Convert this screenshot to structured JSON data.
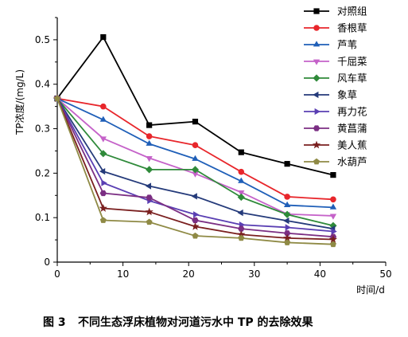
{
  "caption": {
    "number": "图 3",
    "text": "不同生态浮床植物对河道污水中 TP 的去除效果"
  },
  "chart_data": {
    "type": "line",
    "xlabel": "时间/d",
    "ylabel": "TP浓度/(mg/L)",
    "xlim": [
      0,
      50
    ],
    "ylim": [
      0,
      0.55
    ],
    "xticks": [
      "0",
      "10",
      "20",
      "30",
      "40",
      "50"
    ],
    "yticks": [
      "0",
      "0.1",
      "0.2",
      "0.3",
      "0.4",
      "0.5"
    ],
    "grid": false,
    "legend_position": "top-right",
    "x": [
      0,
      7,
      14,
      21,
      28,
      35,
      42
    ],
    "series": [
      {
        "name": "对照组",
        "color": "#000000",
        "marker": "square",
        "values": [
          0.368,
          0.506,
          0.308,
          0.316,
          0.247,
          0.221,
          0.196
        ]
      },
      {
        "name": "香根草",
        "color": "#e8262b",
        "marker": "circle",
        "values": [
          0.368,
          0.35,
          0.283,
          0.263,
          0.203,
          0.147,
          0.141
        ]
      },
      {
        "name": "芦苇",
        "color": "#1f5fb8",
        "marker": "triangle-up",
        "values": [
          0.368,
          0.32,
          0.266,
          0.232,
          0.182,
          0.128,
          0.123
        ]
      },
      {
        "name": "千屈菜",
        "color": "#c562c9",
        "marker": "triangle-down",
        "values": [
          0.368,
          0.278,
          0.234,
          0.199,
          0.157,
          0.108,
          0.104
        ]
      },
      {
        "name": "风车草",
        "color": "#2f8a3a",
        "marker": "diamond",
        "values": [
          0.368,
          0.244,
          0.208,
          0.208,
          0.146,
          0.107,
          0.082
        ]
      },
      {
        "name": "象草",
        "color": "#243a7a",
        "marker": "triangle-left",
        "values": [
          0.368,
          0.204,
          0.171,
          0.148,
          0.111,
          0.093,
          0.075
        ]
      },
      {
        "name": "再力花",
        "color": "#5a3fb3",
        "marker": "triangle-right",
        "values": [
          0.368,
          0.178,
          0.138,
          0.107,
          0.084,
          0.078,
          0.069
        ]
      },
      {
        "name": "黄菖蒲",
        "color": "#7b2e83",
        "marker": "hexagon",
        "values": [
          0.368,
          0.155,
          0.145,
          0.094,
          0.075,
          0.065,
          0.057
        ]
      },
      {
        "name": "美人蕉",
        "color": "#7a1f1f",
        "marker": "star",
        "values": [
          0.368,
          0.121,
          0.113,
          0.08,
          0.062,
          0.054,
          0.051
        ]
      },
      {
        "name": "水葫芦",
        "color": "#8f8a45",
        "marker": "pentagon",
        "values": [
          0.368,
          0.094,
          0.09,
          0.059,
          0.054,
          0.044,
          0.04
        ]
      }
    ]
  }
}
